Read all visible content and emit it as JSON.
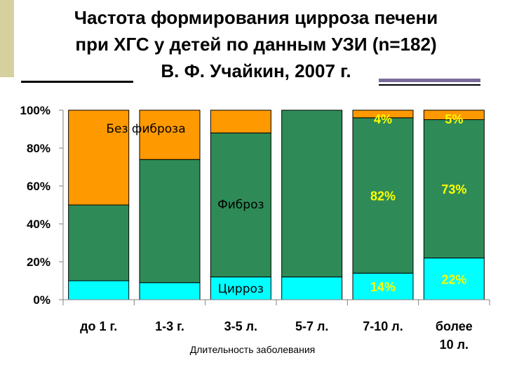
{
  "header": {
    "title_lines": [
      "Частота формирования цирроза печени",
      "при ХГС у детей по данным УЗИ (n=182)",
      "В. Ф. Учайкин, 2007 г."
    ]
  },
  "chart_data": {
    "type": "bar",
    "stacked": true,
    "percent": true,
    "categories": [
      "до 1 г.",
      "1-3 г.",
      "3-5 л.",
      "5-7 л.",
      "7-10 л.",
      [
        "более",
        "10 л."
      ]
    ],
    "series": [
      {
        "name": "Цирроз",
        "color": "#00ffff",
        "values": [
          10,
          9,
          12,
          12,
          14,
          22
        ]
      },
      {
        "name": "Фиброз",
        "color": "#2e8b57",
        "values": [
          40,
          65,
          76,
          88,
          82,
          73
        ]
      },
      {
        "name": "Без фиброза",
        "color": "#ff9900",
        "values": [
          50,
          26,
          12,
          0,
          4,
          5
        ]
      }
    ],
    "data_labels": [
      {
        "category_index": 4,
        "series_index": 0,
        "text": "14%"
      },
      {
        "category_index": 4,
        "series_index": 1,
        "text": "82%"
      },
      {
        "category_index": 4,
        "series_index": 2,
        "text": "4%"
      },
      {
        "category_index": 5,
        "series_index": 0,
        "text": "22%"
      },
      {
        "category_index": 5,
        "series_index": 1,
        "text": "73%"
      },
      {
        "category_index": 5,
        "series_index": 2,
        "text": "5%"
      }
    ],
    "series_annotations": [
      {
        "text": "Без фиброза",
        "category_index": 0,
        "series_index": 2
      },
      {
        "text": "Фиброз",
        "category_index": 2,
        "series_index": 1
      },
      {
        "text": "Цирроз",
        "category_index": 2,
        "series_index": 0
      }
    ],
    "y_ticks": [
      "0%",
      "20%",
      "40%",
      "60%",
      "80%",
      "100%"
    ],
    "ylim": [
      0,
      100
    ],
    "xlabel": "Длительность заболевания",
    "ylabel": "",
    "grid": false,
    "label_color": "#ffff00"
  }
}
